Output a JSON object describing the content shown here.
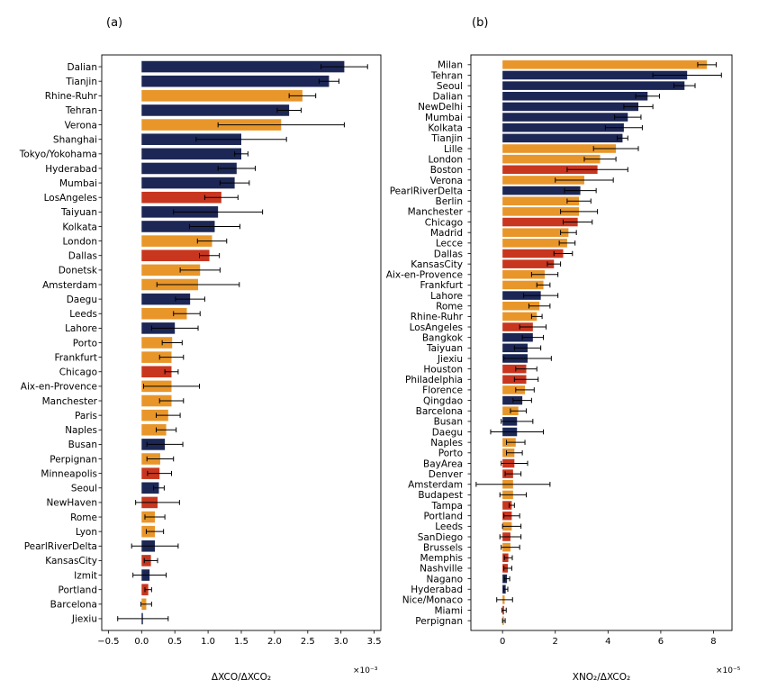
{
  "chart_data": [
    {
      "type": "bar",
      "orientation": "horizontal",
      "panel_label": "(a)",
      "xlabel": "ΔXCO/ΔXCO₂",
      "multiplier": "×10⁻³",
      "xlim": [
        -0.6,
        3.6
      ],
      "xticks": [
        -0.5,
        0.0,
        0.5,
        1.0,
        1.5,
        2.0,
        2.5,
        3.0,
        3.5
      ],
      "xtick_labels": [
        "−0.5",
        "0.0",
        "0.5",
        "1.0",
        "1.5",
        "2.0",
        "2.5",
        "3.0",
        "3.5"
      ],
      "legend_groups": {
        "navy": "#1c2755",
        "orange": "#e8962a",
        "red": "#c8361f"
      },
      "categories": [
        "Dalian",
        "Tianjin",
        "Rhine-Ruhr",
        "Tehran",
        "Verona",
        "Shanghai",
        "Tokyo/Yokohama",
        "Hyderabad",
        "Mumbai",
        "LosAngeles",
        "Taiyuan",
        "Kolkata",
        "London",
        "Dallas",
        "Donetsk",
        "Amsterdam",
        "Daegu",
        "Leeds",
        "Lahore",
        "Porto",
        "Frankfurt",
        "Chicago",
        "Aix-en-Provence",
        "Manchester",
        "Paris",
        "Naples",
        "Busan",
        "Perpignan",
        "Minneapolis",
        "Seoul",
        "NewHaven",
        "Rome",
        "Lyon",
        "PearlRiverDelta",
        "KansasCity",
        "Izmit",
        "Portland",
        "Barcelona",
        "Jiexiu"
      ],
      "values": [
        3.05,
        2.82,
        2.42,
        2.22,
        2.1,
        1.5,
        1.5,
        1.43,
        1.4,
        1.2,
        1.15,
        1.1,
        1.06,
        1.02,
        0.88,
        0.85,
        0.73,
        0.68,
        0.5,
        0.46,
        0.45,
        0.45,
        0.45,
        0.45,
        0.4,
        0.37,
        0.35,
        0.28,
        0.27,
        0.26,
        0.24,
        0.2,
        0.2,
        0.2,
        0.14,
        0.12,
        0.1,
        0.07,
        0.02
      ],
      "errors": [
        0.35,
        0.15,
        0.2,
        0.18,
        0.95,
        0.68,
        0.1,
        0.28,
        0.22,
        0.25,
        0.67,
        0.38,
        0.22,
        0.15,
        0.3,
        0.62,
        0.22,
        0.2,
        0.35,
        0.15,
        0.18,
        0.1,
        0.42,
        0.18,
        0.18,
        0.15,
        0.27,
        0.2,
        0.18,
        0.08,
        0.33,
        0.15,
        0.13,
        0.35,
        0.1,
        0.25,
        0.05,
        0.08,
        0.38
      ],
      "colors": [
        "navy",
        "navy",
        "orange",
        "navy",
        "orange",
        "navy",
        "navy",
        "navy",
        "navy",
        "red",
        "navy",
        "navy",
        "orange",
        "red",
        "orange",
        "orange",
        "navy",
        "orange",
        "navy",
        "orange",
        "orange",
        "red",
        "orange",
        "orange",
        "orange",
        "orange",
        "navy",
        "orange",
        "red",
        "navy",
        "red",
        "orange",
        "orange",
        "navy",
        "red",
        "navy",
        "red",
        "orange",
        "navy"
      ]
    },
    {
      "type": "bar",
      "orientation": "horizontal",
      "panel_label": "(b)",
      "xlabel": "XNO₂/ΔXCO₂",
      "multiplier": "×10⁻⁵",
      "xlim": [
        -1.2,
        8.7
      ],
      "xticks": [
        0,
        2,
        4,
        6,
        8
      ],
      "xtick_labels": [
        "0",
        "2",
        "4",
        "6",
        "8"
      ],
      "legend_groups": {
        "navy": "#1c2755",
        "orange": "#e8962a",
        "red": "#c8361f"
      },
      "categories": [
        "Milan",
        "Tehran",
        "Seoul",
        "Dalian",
        "NewDelhi",
        "Mumbai",
        "Kolkata",
        "Tianjin",
        "Lille",
        "London",
        "Boston",
        "Verona",
        "PearlRiverDelta",
        "Berlin",
        "Manchester",
        "Chicago",
        "Madrid",
        "Lecce",
        "Dallas",
        "KansasCity",
        "Aix-en-Provence",
        "Frankfurt",
        "Lahore",
        "Rome",
        "Rhine-Ruhr",
        "LosAngeles",
        "Bangkok",
        "Taiyuan",
        "Jiexiu",
        "Houston",
        "Philadelphia",
        "Florence",
        "Qingdao",
        "Barcelona",
        "Busan",
        "Daegu",
        "Naples",
        "Porto",
        "BayArea",
        "Denver",
        "Amsterdam",
        "Budapest",
        "Tampa",
        "Portland",
        "Leeds",
        "SanDiego",
        "Brussels",
        "Memphis",
        "Nashville",
        "Nagano",
        "Hyderabad",
        "Nice/Monaco",
        "Miami",
        "Perpignan"
      ],
      "values": [
        7.75,
        7.0,
        6.9,
        5.5,
        5.15,
        4.75,
        4.6,
        4.55,
        4.3,
        3.7,
        3.6,
        3.1,
        2.95,
        2.9,
        2.9,
        2.85,
        2.5,
        2.45,
        2.3,
        1.95,
        1.6,
        1.55,
        1.45,
        1.4,
        1.3,
        1.15,
        1.15,
        0.95,
        0.95,
        0.9,
        0.9,
        0.85,
        0.75,
        0.6,
        0.55,
        0.55,
        0.5,
        0.45,
        0.45,
        0.4,
        0.4,
        0.4,
        0.35,
        0.35,
        0.35,
        0.3,
        0.3,
        0.22,
        0.2,
        0.17,
        0.12,
        0.08,
        0.06,
        0.05
      ],
      "errors": [
        0.35,
        1.3,
        0.4,
        0.45,
        0.55,
        0.5,
        0.7,
        0.2,
        0.85,
        0.6,
        1.15,
        1.1,
        0.6,
        0.45,
        0.7,
        0.55,
        0.3,
        0.3,
        0.35,
        0.25,
        0.5,
        0.25,
        0.65,
        0.4,
        0.2,
        0.5,
        0.4,
        0.5,
        0.9,
        0.4,
        0.45,
        0.35,
        0.35,
        0.3,
        0.6,
        1.0,
        0.35,
        0.3,
        0.5,
        0.3,
        1.4,
        0.5,
        0.1,
        0.3,
        0.35,
        0.4,
        0.35,
        0.15,
        0.15,
        0.1,
        0.08,
        0.3,
        0.08,
        0.05
      ],
      "colors": [
        "orange",
        "navy",
        "navy",
        "navy",
        "navy",
        "navy",
        "navy",
        "navy",
        "orange",
        "orange",
        "red",
        "orange",
        "navy",
        "orange",
        "orange",
        "red",
        "orange",
        "orange",
        "red",
        "red",
        "orange",
        "orange",
        "navy",
        "orange",
        "orange",
        "red",
        "navy",
        "navy",
        "navy",
        "red",
        "red",
        "orange",
        "navy",
        "orange",
        "navy",
        "navy",
        "orange",
        "orange",
        "red",
        "red",
        "orange",
        "orange",
        "red",
        "red",
        "orange",
        "red",
        "orange",
        "red",
        "red",
        "navy",
        "navy",
        "orange",
        "red",
        "orange"
      ]
    }
  ]
}
